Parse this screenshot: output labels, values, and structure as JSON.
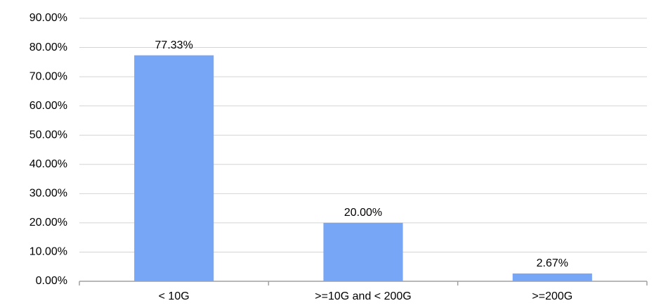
{
  "chart_data": {
    "type": "bar",
    "categories": [
      "< 10G",
      ">=10G and < 200G",
      ">=200G"
    ],
    "values": [
      77.33,
      20.0,
      2.67
    ],
    "value_labels": [
      "77.33%",
      "20.00%",
      "2.67%"
    ],
    "color": "#78a6f6",
    "ylim": [
      0,
      90
    ],
    "yticks": [
      {
        "value": 0,
        "label": "0.00%"
      },
      {
        "value": 10,
        "label": "10.00%"
      },
      {
        "value": 20,
        "label": "20.00%"
      },
      {
        "value": 30,
        "label": "30.00%"
      },
      {
        "value": 40,
        "label": "40.00%"
      },
      {
        "value": 50,
        "label": "50.00%"
      },
      {
        "value": 60,
        "label": "60.00%"
      },
      {
        "value": 70,
        "label": "70.00%"
      },
      {
        "value": 80,
        "label": "80.00%"
      },
      {
        "value": 90,
        "label": "90.00%"
      }
    ],
    "grid": true
  }
}
